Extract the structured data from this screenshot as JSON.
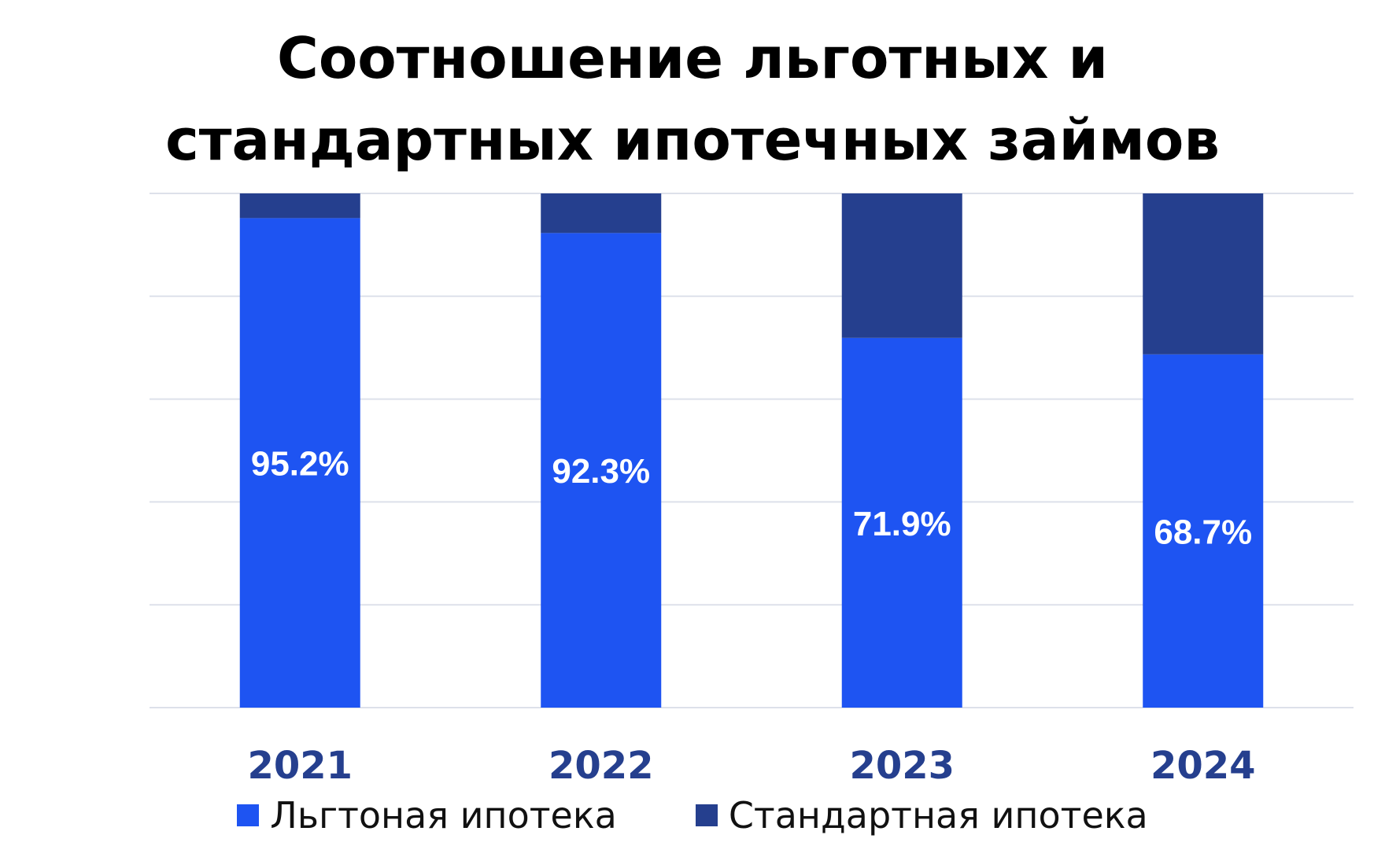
{
  "title": {
    "line1": "Соотношение льготных и",
    "line2": "стандартных ипотечных займов"
  },
  "colors": {
    "subsidized": "#1E54F2",
    "standard": "#253F8E",
    "grid": "#DDE1EA",
    "year_label": "#253F8E",
    "data_label": "#FFFFFF"
  },
  "legend": {
    "subsidized_label": "Льгтоная ипотека",
    "standard_label": "Стандартная ипотека"
  },
  "chart_data": {
    "type": "bar",
    "stacked": true,
    "title": "Соотношение льготных и стандартных ипотечных займов",
    "categories": [
      "2021",
      "2022",
      "2023",
      "2024"
    ],
    "series": [
      {
        "name": "Льгтоная ипотека",
        "values": [
          95.2,
          92.3,
          71.9,
          68.7
        ],
        "labels": [
          "95.2%",
          "92.3%",
          "71.9%",
          "68.7%"
        ]
      },
      {
        "name": "Стандартная ипотека",
        "values": [
          4.8,
          7.7,
          28.1,
          31.3
        ]
      }
    ],
    "ylim": [
      0,
      100
    ],
    "grid": true,
    "y_ticks_shown": false,
    "legend_position": "bottom"
  }
}
